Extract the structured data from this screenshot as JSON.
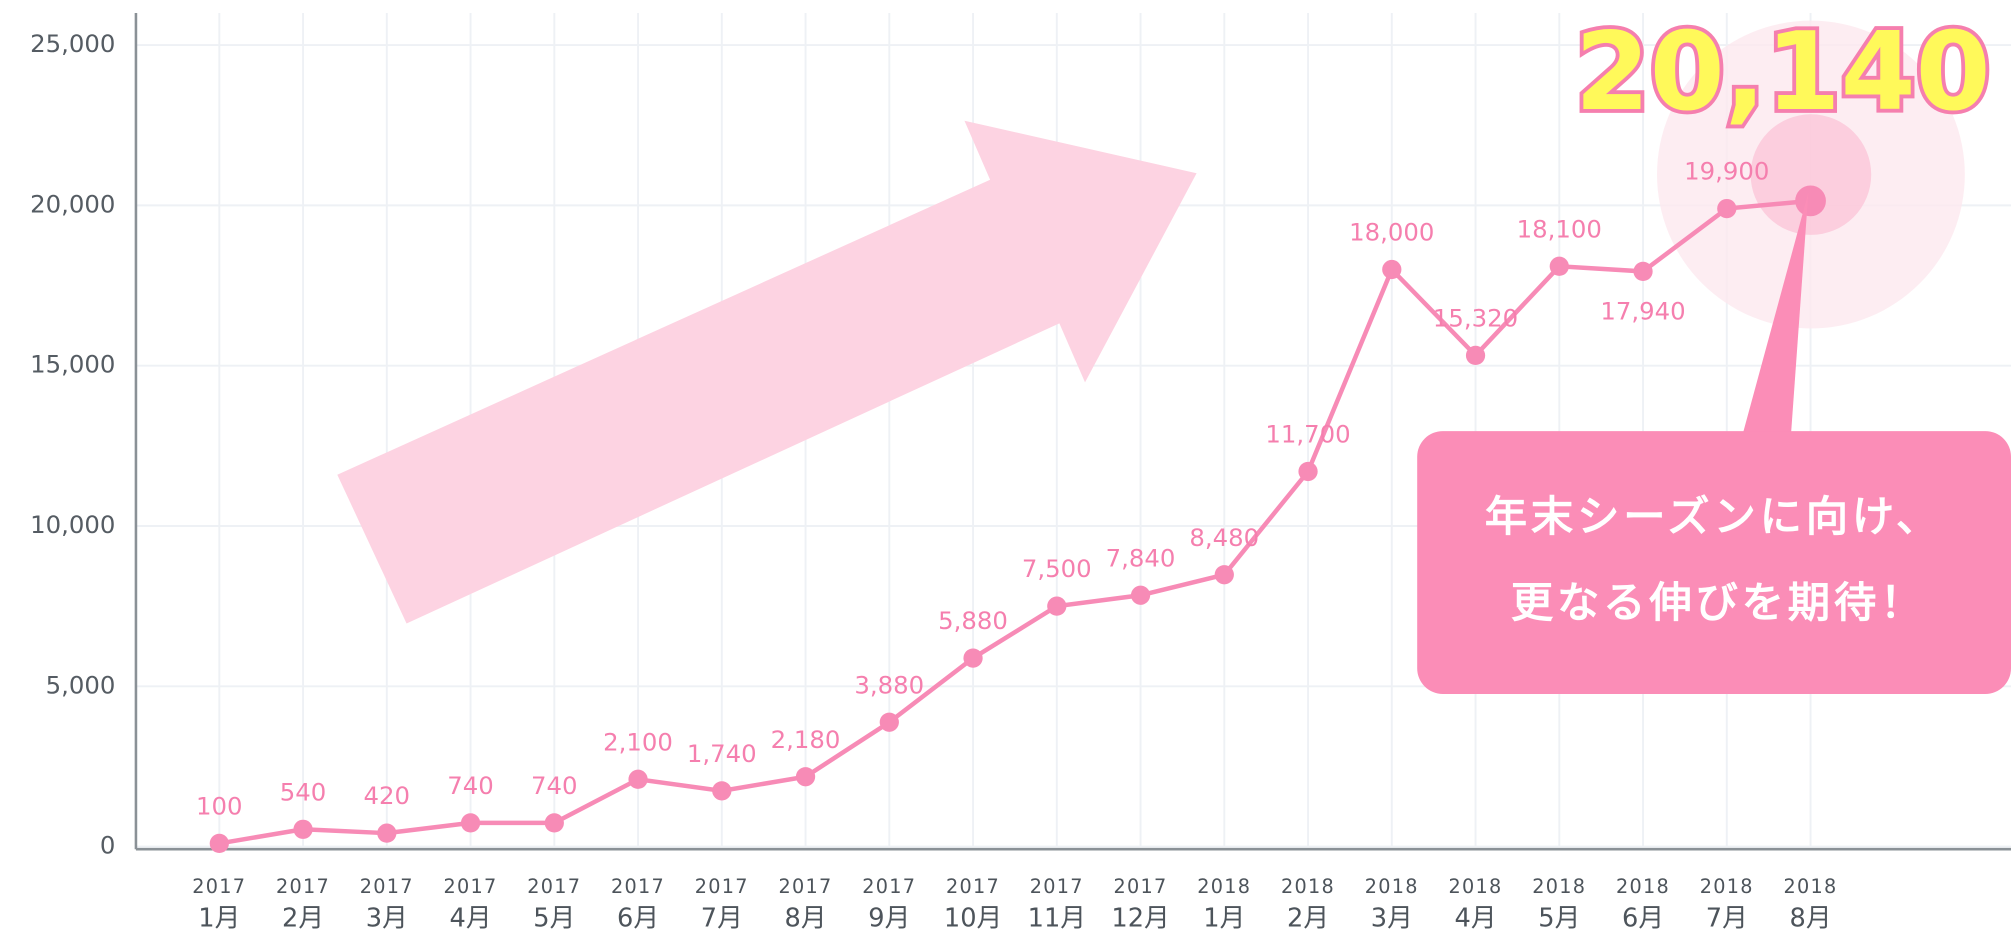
{
  "chart_data": {
    "type": "line",
    "categories": [
      {
        "year": "2017",
        "month": "1月"
      },
      {
        "year": "2017",
        "month": "2月"
      },
      {
        "year": "2017",
        "month": "3月"
      },
      {
        "year": "2017",
        "month": "4月"
      },
      {
        "year": "2017",
        "month": "5月"
      },
      {
        "year": "2017",
        "month": "6月"
      },
      {
        "year": "2017",
        "month": "7月"
      },
      {
        "year": "2017",
        "month": "8月"
      },
      {
        "year": "2017",
        "month": "9月"
      },
      {
        "year": "2017",
        "month": "10月"
      },
      {
        "year": "2017",
        "month": "11月"
      },
      {
        "year": "2017",
        "month": "12月"
      },
      {
        "year": "2018",
        "month": "1月"
      },
      {
        "year": "2018",
        "month": "2月"
      },
      {
        "year": "2018",
        "month": "3月"
      },
      {
        "year": "2018",
        "month": "4月"
      },
      {
        "year": "2018",
        "month": "5月"
      },
      {
        "year": "2018",
        "month": "6月"
      },
      {
        "year": "2018",
        "month": "7月"
      },
      {
        "year": "2018",
        "month": "8月"
      }
    ],
    "values": [
      100,
      540,
      420,
      740,
      740,
      2100,
      1740,
      2180,
      3880,
      5880,
      7500,
      7840,
      8480,
      11700,
      18000,
      15320,
      18100,
      17940,
      19900,
      20140
    ],
    "value_labels": [
      "100",
      "540",
      "420",
      "740",
      "740",
      "2,100",
      "1,740",
      "2,180",
      "3,880",
      "5,880",
      "7,500",
      "7,840",
      "8,480",
      "11,700",
      "18,000",
      "15,320",
      "18,100",
      "17,940",
      "19,900",
      null
    ],
    "color": "#f78bb6",
    "ylim": [
      0,
      26000
    ],
    "yticks": [
      0,
      {
        "value": 5000,
        "label": "5,000"
      },
      {
        "value": 10000,
        "label": "10,000"
      },
      {
        "value": 15000,
        "label": "15,000"
      },
      {
        "value": 20000,
        "label": "20,000"
      },
      {
        "value": 25000,
        "label": "25,000"
      }
    ],
    "grid": true,
    "annotations": {
      "highlight": "20,140",
      "callout": [
        "年末シーズンに向け、",
        "更なる伸びを期待！"
      ]
    }
  }
}
